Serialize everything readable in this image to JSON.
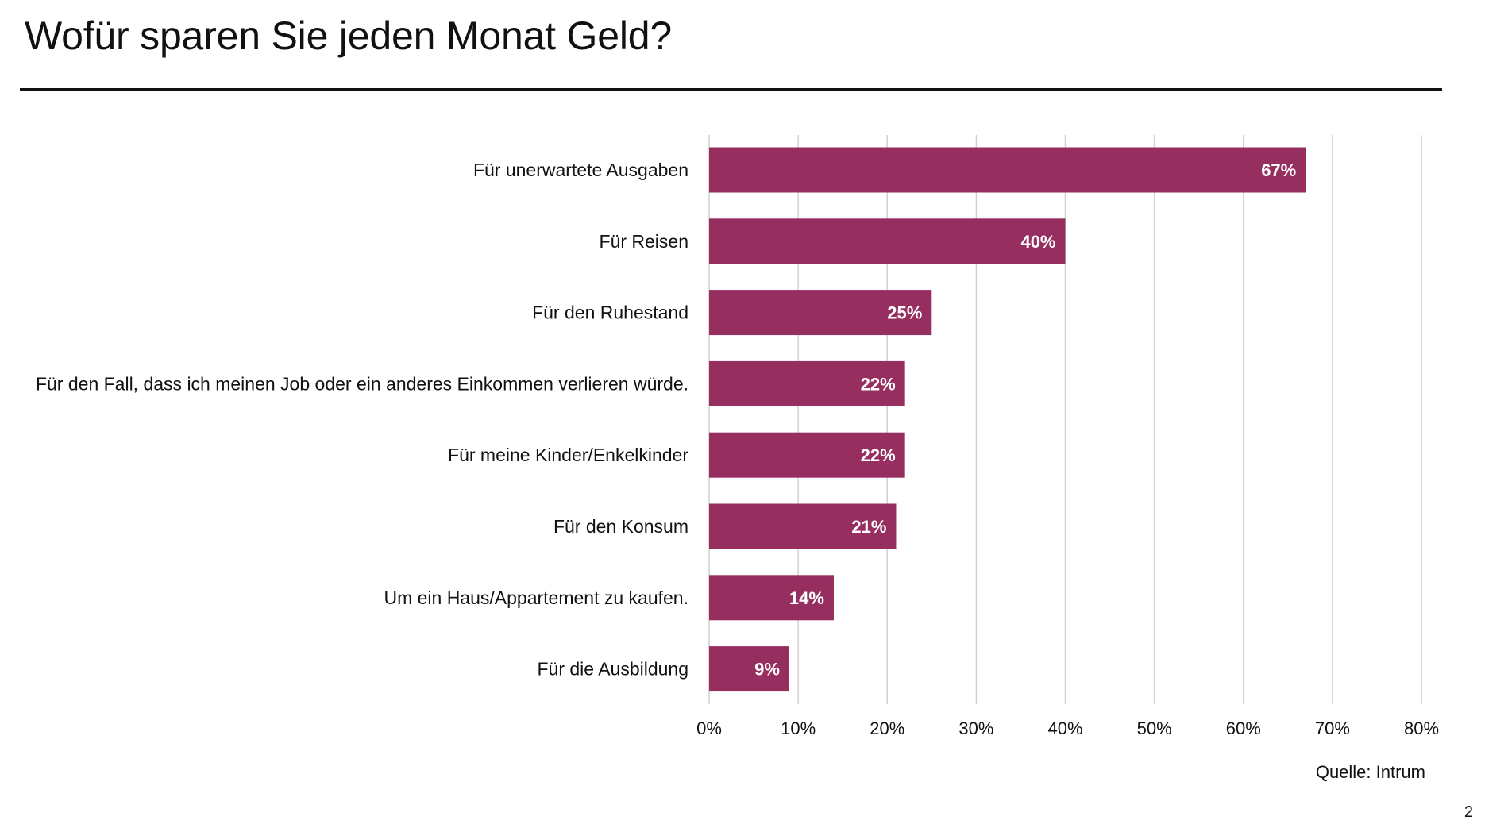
{
  "slide": {
    "title": "Wofür sparen Sie jeden Monat Geld?",
    "source": "Quelle: Intrum",
    "page_number": "2"
  },
  "colors": {
    "bar": "#962f5f",
    "bar_label": "#ffffff",
    "grid": "#d0d0d0",
    "text": "#111111"
  },
  "chart_data": {
    "type": "bar",
    "orientation": "horizontal",
    "title": "Wofür sparen Sie jeden Monat Geld?",
    "categories": [
      "Für unerwartete Ausgaben",
      "Für Reisen",
      "Für den Ruhestand",
      "Für den Fall, dass ich meinen Job oder ein anderes Einkommen verlieren würde.",
      "Für meine Kinder/Enkelkinder",
      "Für den Konsum",
      "Um ein Haus/Appartement zu kaufen.",
      "Für die Ausbildung"
    ],
    "values": [
      67,
      40,
      25,
      22,
      22,
      21,
      14,
      9
    ],
    "value_labels": [
      "67%",
      "40%",
      "25%",
      "22%",
      "22%",
      "21%",
      "14%",
      "9%"
    ],
    "xlim": [
      0,
      80
    ],
    "x_ticks": [
      0,
      10,
      20,
      30,
      40,
      50,
      60,
      70,
      80
    ],
    "x_tick_labels": [
      "0%",
      "10%",
      "20%",
      "30%",
      "40%",
      "50%",
      "60%",
      "70%",
      "80%"
    ],
    "xlabel": "",
    "ylabel": "",
    "grid": true,
    "legend": "none"
  }
}
